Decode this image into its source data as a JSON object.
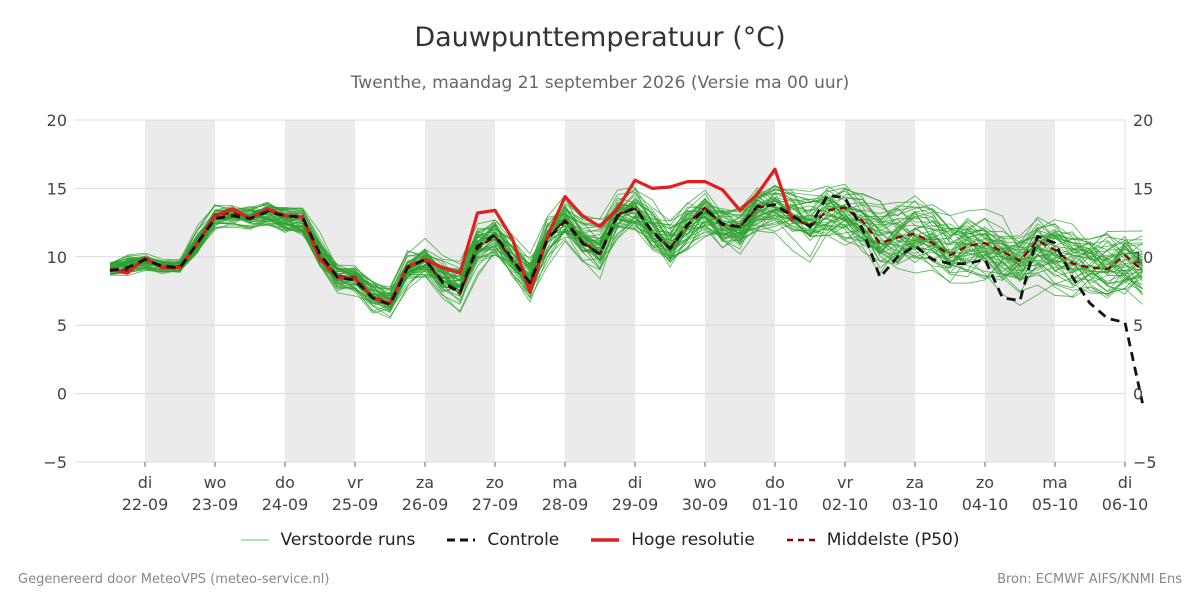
{
  "chart_data": {
    "type": "line",
    "title": "Dauwpunttemperatuur (°C)",
    "subtitle": "Twenthe, maandag 21 september 2026 (Versie ma 00 uur)",
    "ylim": [
      -5,
      20
    ],
    "yticks": [
      -5,
      0,
      5,
      10,
      15,
      20
    ],
    "ytick_labels": [
      "−5",
      "0",
      "5",
      "10",
      "15",
      "20"
    ],
    "x_range_days": [
      0,
      15
    ],
    "xticks": [
      {
        "day": 1,
        "weekday": "di",
        "date": "22-09"
      },
      {
        "day": 2,
        "weekday": "wo",
        "date": "23-09"
      },
      {
        "day": 3,
        "weekday": "do",
        "date": "24-09"
      },
      {
        "day": 4,
        "weekday": "vr",
        "date": "25-09"
      },
      {
        "day": 5,
        "weekday": "za",
        "date": "26-09"
      },
      {
        "day": 6,
        "weekday": "zo",
        "date": "27-09"
      },
      {
        "day": 7,
        "weekday": "ma",
        "date": "28-09"
      },
      {
        "day": 8,
        "weekday": "di",
        "date": "29-09"
      },
      {
        "day": 9,
        "weekday": "wo",
        "date": "30-09"
      },
      {
        "day": 10,
        "weekday": "do",
        "date": "01-10"
      },
      {
        "day": 11,
        "weekday": "vr",
        "date": "02-10"
      },
      {
        "day": 12,
        "weekday": "za",
        "date": "03-10"
      },
      {
        "day": 13,
        "weekday": "zo",
        "date": "04-10"
      },
      {
        "day": 14,
        "weekday": "ma",
        "date": "05-10"
      },
      {
        "day": 15,
        "weekday": "di",
        "date": "06-10"
      }
    ],
    "shaded_days": [
      [
        1,
        2
      ],
      [
        3,
        4
      ],
      [
        5,
        6
      ],
      [
        7,
        8
      ],
      [
        9,
        10
      ],
      [
        11,
        12
      ],
      [
        13,
        14
      ]
    ],
    "step_hours": 6,
    "grid": true,
    "legend_position": "bottom",
    "series": [
      {
        "name": "Controle",
        "color": "#111111",
        "style": "dashed",
        "values": [
          9.0,
          9.2,
          9.8,
          9.3,
          9.2,
          11.0,
          12.8,
          13.0,
          12.8,
          13.3,
          13.0,
          12.9,
          10.2,
          8.5,
          8.3,
          7.0,
          6.5,
          9.2,
          9.8,
          8.2,
          7.4,
          10.8,
          11.6,
          9.8,
          8.1,
          11.3,
          12.6,
          11.0,
          10.2,
          13.0,
          13.6,
          11.8,
          10.6,
          12.3,
          13.5,
          12.4,
          12.2,
          13.7,
          13.8,
          13.0,
          12.2,
          14.5,
          14.3,
          12.0,
          8.5,
          10.0,
          10.8,
          9.8,
          9.5,
          9.5,
          9.8,
          7.0,
          6.8,
          11.5,
          11.0,
          8.5,
          6.6,
          5.5,
          5.2,
          -0.7
        ]
      },
      {
        "name": "Hoge resolutie",
        "color": "#e02020",
        "style": "solid",
        "values": [
          9.1,
          8.8,
          9.9,
          9.2,
          9.2,
          11.0,
          13.0,
          13.5,
          12.8,
          13.5,
          13.0,
          12.9,
          9.8,
          8.5,
          8.4,
          7.0,
          6.6,
          9.3,
          9.8,
          9.2,
          8.8,
          13.2,
          13.4,
          11.3,
          7.4,
          11.5,
          14.4,
          13.0,
          12.2,
          13.5,
          15.6,
          15.0,
          15.1,
          15.5,
          15.5,
          14.9,
          13.4,
          14.6,
          16.4,
          12.6
        ]
      },
      {
        "name": "Middelste (P50)",
        "color": "#8b0000",
        "style": "dashed",
        "values": [
          9.0,
          9.0,
          9.8,
          9.3,
          9.3,
          11.0,
          13.1,
          13.2,
          12.8,
          13.4,
          13.0,
          13.0,
          10.0,
          8.6,
          8.5,
          7.1,
          6.6,
          9.2,
          9.8,
          8.1,
          7.3,
          10.6,
          11.5,
          9.7,
          8.0,
          11.4,
          12.7,
          11.1,
          10.2,
          13.1,
          13.5,
          11.9,
          10.6,
          12.4,
          13.6,
          12.3,
          12.2,
          13.6,
          13.8,
          12.9,
          12.2,
          13.4,
          13.6,
          12.6,
          11.0,
          11.4,
          11.7,
          11.0,
          10.1,
          10.8,
          11.0,
          10.4,
          9.7,
          11.2,
          10.5,
          9.5,
          9.2,
          9.1,
          10.1,
          9.0
        ]
      }
    ],
    "ensemble": {
      "name": "Verstoorde runs",
      "color": "#2ca02c",
      "members": 50,
      "description_values_per_step": "spread envelope",
      "mean": [
        9.1,
        9.4,
        9.6,
        9.3,
        9.3,
        11.1,
        12.9,
        13.0,
        12.9,
        13.2,
        12.8,
        12.5,
        10.3,
        8.6,
        8.4,
        7.2,
        6.7,
        9.0,
        9.6,
        8.4,
        7.8,
        10.7,
        11.5,
        9.9,
        8.5,
        11.3,
        12.6,
        11.2,
        10.5,
        12.8,
        13.3,
        12.0,
        10.9,
        12.2,
        13.2,
        12.3,
        12.0,
        13.3,
        13.6,
        12.8,
        12.2,
        12.9,
        13.0,
        12.3,
        11.2,
        11.3,
        11.5,
        11.0,
        10.3,
        10.7,
        10.8,
        10.2,
        9.8,
        10.8,
        10.4,
        9.6,
        9.3,
        9.3,
        9.8,
        9.3
      ],
      "spread": [
        0.5,
        0.8,
        0.7,
        0.6,
        0.6,
        1.2,
        1.2,
        1.0,
        1.1,
        1.2,
        1.3,
        1.3,
        1.5,
        1.5,
        1.4,
        1.5,
        1.4,
        1.6,
        1.8,
        2.1,
        2.3,
        2.2,
        2.1,
        2.3,
        2.5,
        2.3,
        2.2,
        2.3,
        2.5,
        2.4,
        2.3,
        2.5,
        2.6,
        2.5,
        2.4,
        2.6,
        2.7,
        2.6,
        2.6,
        2.8,
        2.8,
        2.9,
        3.0,
        3.0,
        3.1,
        3.1,
        3.2,
        3.2,
        3.1,
        3.2,
        3.2,
        3.3,
        3.3,
        3.3,
        3.4,
        3.4,
        3.4,
        3.5,
        3.5,
        3.5
      ]
    }
  },
  "legend": {
    "ensemble_label": "Verstoorde runs",
    "control_label": "Controle",
    "hires_label": "Hoge resolutie",
    "median_label": "Middelste (P50)"
  },
  "footer": {
    "left": "Gegenereerd door MeteoVPS (meteo-service.nl)",
    "right": "Bron: ECMWF AIFS/KNMI Ens"
  }
}
